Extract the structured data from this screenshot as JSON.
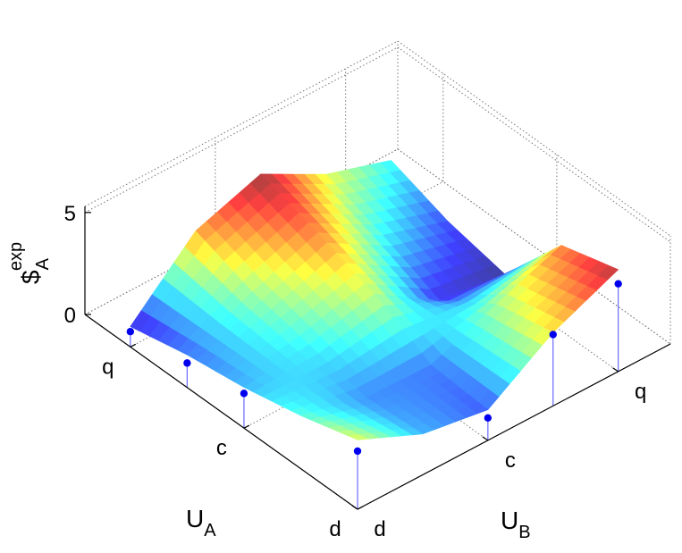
{
  "chart_data": {
    "type": "surface3d",
    "xlabel": {
      "text": "U",
      "sub": "A"
    },
    "ylabel": {
      "text": "U",
      "sub": "B"
    },
    "zlabel": {
      "text": "$",
      "sub": "A",
      "sup": "exp"
    },
    "xlim": [
      1,
      3.4
    ],
    "ylim": [
      1,
      3.4
    ],
    "zlim": [
      0,
      5.3
    ],
    "xticks": [
      {
        "value": 1,
        "label": "d"
      },
      {
        "value": 2,
        "label": "c"
      },
      {
        "value": 3,
        "label": "q"
      }
    ],
    "yticks": [
      {
        "value": 1,
        "label": "d"
      },
      {
        "value": 2,
        "label": "c"
      },
      {
        "value": 3,
        "label": "q"
      }
    ],
    "zticks": [
      0,
      5
    ],
    "grid": true,
    "surface": {
      "x": [
        1,
        1.5,
        2,
        2.5,
        3
      ],
      "y": [
        1,
        1.5,
        2,
        2.5,
        3
      ],
      "z": [
        [
          3.4,
          2.0,
          1.5,
          3.6,
          5.0
        ],
        [
          2.6,
          1.8,
          1.7,
          3.0,
          4.2
        ],
        [
          2.0,
          2.4,
          3.2,
          1.2,
          0.8
        ],
        [
          1.6,
          3.0,
          4.2,
          2.4,
          1.4
        ],
        [
          1.0,
          4.0,
          5.1,
          3.4,
          2.4
        ]
      ]
    },
    "stems": {
      "color": "#0000ee",
      "x": [
        1,
        2,
        2.5,
        3,
        1,
        1,
        1,
        2,
        2,
        2,
        2.5,
        2.5,
        2.5,
        3,
        3,
        3
      ],
      "y": [
        1,
        1,
        1,
        1,
        2,
        2.5,
        3,
        2,
        2.5,
        3,
        2,
        2.5,
        3,
        2,
        2.5,
        3
      ],
      "z": [
        2.85,
        1.7,
        1.2,
        0.75,
        1.1,
        3.5,
        4.3,
        2.85,
        0.9,
        0.35,
        3.7,
        2.0,
        1.0,
        4.6,
        2.4,
        1.2
      ]
    }
  }
}
